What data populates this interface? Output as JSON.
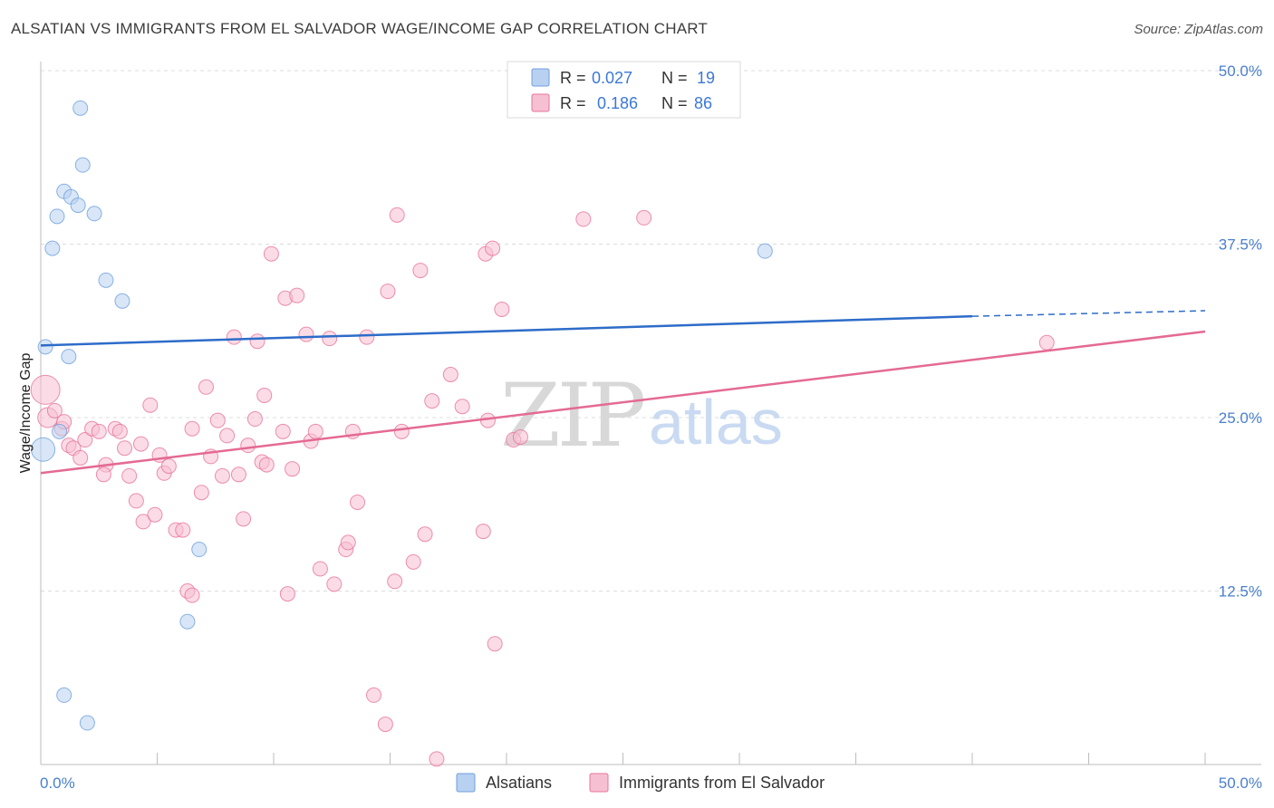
{
  "title": "ALSATIAN VS IMMIGRANTS FROM EL SALVADOR WAGE/INCOME GAP CORRELATION CHART",
  "source": "Source: ZipAtlas.com",
  "watermark": {
    "zip": "ZIP",
    "atlas": "atlas"
  },
  "colors": {
    "blue": "#6fa0dd",
    "blue_fill": "#b8d1f1",
    "pink": "#e8739b",
    "pink_fill": "#f7c0d2",
    "blue_line": "#2d6cc9",
    "pink_line": "#e46a93"
  },
  "legend_top": {
    "rows": [
      {
        "r_label": "R =",
        "r_value": "0.027",
        "n_label": "N =",
        "n_value": "19"
      },
      {
        "r_label": "R =",
        "r_value": "0.186",
        "n_label": "N =",
        "n_value": "86"
      }
    ]
  },
  "legend_bottom": {
    "series1": "Alsatians",
    "series2": "Immigrants from El Salvador"
  },
  "chart_data": {
    "type": "scatter",
    "title": "ALSATIAN VS IMMIGRANTS FROM EL SALVADOR WAGE/INCOME GAP CORRELATION CHART",
    "xlabel": "",
    "ylabel": "Wage/Income Gap",
    "xlim": [
      0,
      50
    ],
    "ylim": [
      0,
      50
    ],
    "x_tick_labels": [
      "0.0%",
      "50.0%"
    ],
    "y_ticks": [
      12.5,
      25.0,
      37.5,
      50.0
    ],
    "y_tick_labels": [
      "12.5%",
      "25.0%",
      "37.5%",
      "50.0%"
    ],
    "grid": true,
    "series": [
      {
        "name": "Alsatians",
        "r": 0.027,
        "n": 19,
        "trend": {
          "x0": 0,
          "y0": 30.2,
          "x1": 40,
          "y1": 32.3,
          "dash_to_x": 50,
          "dash_to_y": 32.7
        },
        "points": [
          [
            1.7,
            47.3
          ],
          [
            1.8,
            43.2
          ],
          [
            1.0,
            41.3
          ],
          [
            1.3,
            40.9
          ],
          [
            1.6,
            40.3
          ],
          [
            0.7,
            39.5
          ],
          [
            2.3,
            39.7
          ],
          [
            0.5,
            37.2
          ],
          [
            2.8,
            34.9
          ],
          [
            3.5,
            33.4
          ],
          [
            0.2,
            30.1
          ],
          [
            1.2,
            29.4
          ],
          [
            0.8,
            24.0
          ],
          [
            0.1,
            22.7
          ],
          [
            6.8,
            15.5
          ],
          [
            6.3,
            10.3
          ],
          [
            1.0,
            5.0
          ],
          [
            2.0,
            3.0
          ],
          [
            31.1,
            37.0
          ]
        ],
        "sizes": [
          8,
          8,
          8,
          8,
          8,
          8,
          8,
          8,
          8,
          8,
          8,
          8,
          8,
          13,
          8,
          8,
          8,
          8,
          8
        ]
      },
      {
        "name": "Immigrants from El Salvador",
        "r": 0.186,
        "n": 86,
        "trend": {
          "x0": 0,
          "y0": 21.0,
          "x1": 50,
          "y1": 31.2
        },
        "points": [
          [
            0.2,
            27.0
          ],
          [
            0.3,
            25.0
          ],
          [
            0.6,
            25.5
          ],
          [
            0.9,
            24.2
          ],
          [
            1.0,
            24.7
          ],
          [
            1.2,
            23.0
          ],
          [
            1.4,
            22.8
          ],
          [
            1.7,
            22.1
          ],
          [
            1.9,
            23.4
          ],
          [
            2.2,
            24.2
          ],
          [
            2.5,
            24.0
          ],
          [
            2.8,
            21.6
          ],
          [
            2.7,
            20.9
          ],
          [
            3.2,
            24.2
          ],
          [
            3.4,
            24.0
          ],
          [
            3.6,
            22.8
          ],
          [
            3.8,
            20.8
          ],
          [
            4.1,
            19.0
          ],
          [
            4.3,
            23.1
          ],
          [
            4.4,
            17.5
          ],
          [
            4.7,
            25.9
          ],
          [
            4.9,
            18.0
          ],
          [
            5.1,
            22.3
          ],
          [
            5.3,
            21.0
          ],
          [
            5.5,
            21.5
          ],
          [
            5.8,
            16.9
          ],
          [
            6.1,
            16.9
          ],
          [
            6.3,
            12.5
          ],
          [
            6.5,
            12.2
          ],
          [
            6.5,
            24.2
          ],
          [
            6.9,
            19.6
          ],
          [
            7.1,
            27.2
          ],
          [
            7.3,
            22.2
          ],
          [
            7.6,
            24.8
          ],
          [
            7.8,
            20.8
          ],
          [
            8.0,
            23.7
          ],
          [
            8.3,
            30.8
          ],
          [
            8.5,
            20.9
          ],
          [
            8.7,
            17.7
          ],
          [
            8.9,
            23.0
          ],
          [
            9.2,
            24.9
          ],
          [
            9.3,
            30.5
          ],
          [
            9.5,
            21.8
          ],
          [
            9.6,
            26.6
          ],
          [
            9.7,
            21.6
          ],
          [
            9.9,
            36.8
          ],
          [
            10.4,
            24.0
          ],
          [
            10.5,
            33.6
          ],
          [
            10.6,
            12.3
          ],
          [
            10.8,
            21.3
          ],
          [
            11.0,
            33.8
          ],
          [
            11.4,
            31.0
          ],
          [
            11.6,
            23.3
          ],
          [
            11.8,
            24.0
          ],
          [
            12.0,
            14.1
          ],
          [
            12.4,
            30.7
          ],
          [
            12.6,
            13.0
          ],
          [
            13.1,
            15.5
          ],
          [
            13.2,
            16.0
          ],
          [
            13.4,
            24.0
          ],
          [
            13.6,
            18.9
          ],
          [
            14.0,
            30.8
          ],
          [
            14.3,
            5.0
          ],
          [
            14.8,
            2.9
          ],
          [
            14.9,
            34.1
          ],
          [
            15.2,
            13.2
          ],
          [
            15.3,
            39.6
          ],
          [
            15.5,
            24.0
          ],
          [
            16.0,
            14.6
          ],
          [
            16.5,
            16.6
          ],
          [
            16.3,
            35.6
          ],
          [
            16.8,
            26.2
          ],
          [
            17.0,
            0.4
          ],
          [
            17.6,
            28.1
          ],
          [
            18.1,
            25.8
          ],
          [
            19.0,
            16.8
          ],
          [
            19.1,
            36.8
          ],
          [
            19.4,
            37.2
          ],
          [
            19.2,
            24.8
          ],
          [
            19.5,
            8.7
          ],
          [
            19.8,
            32.8
          ],
          [
            20.3,
            23.4
          ],
          [
            20.6,
            23.6
          ],
          [
            23.3,
            39.3
          ],
          [
            25.9,
            39.4
          ],
          [
            43.2,
            30.4
          ]
        ],
        "sizes": [
          16,
          11,
          8,
          8,
          8,
          8,
          8,
          8,
          8,
          8,
          8,
          8,
          8,
          8,
          8,
          8,
          8,
          8,
          8,
          8,
          8,
          8,
          8,
          8,
          8,
          8,
          8,
          8,
          8,
          8,
          8,
          8,
          8,
          8,
          8,
          8,
          8,
          8,
          8,
          8,
          8,
          8,
          8,
          8,
          8,
          8,
          8,
          8,
          8,
          8,
          8,
          8,
          8,
          8,
          8,
          8,
          8,
          8,
          8,
          8,
          8,
          8,
          8,
          8,
          8,
          8,
          8,
          8,
          8,
          8,
          8,
          8,
          8,
          8,
          8,
          8,
          8,
          8,
          8,
          8,
          8,
          8,
          8,
          8,
          8,
          8
        ]
      }
    ]
  }
}
